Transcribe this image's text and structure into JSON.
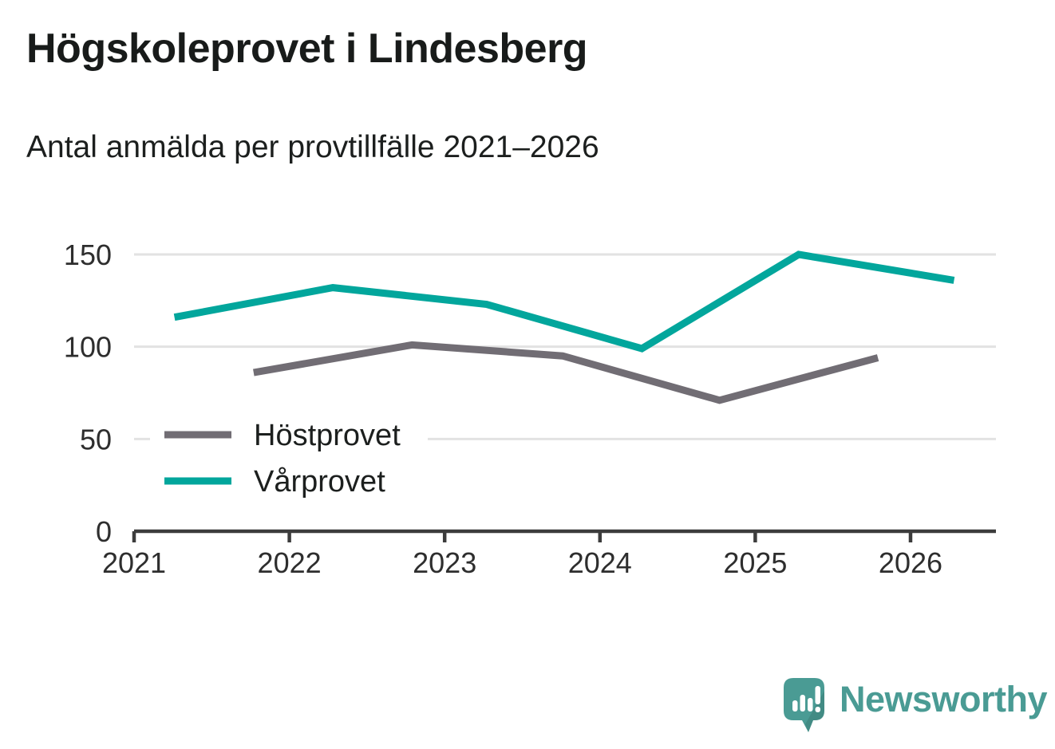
{
  "header": {
    "title": "Högskoleprovet i Lindesberg",
    "subtitle": "Antal anmälda per provtillfälle 2021–2026"
  },
  "chart_data": {
    "type": "line",
    "title": "Högskoleprovet i Lindesberg",
    "subtitle": "Antal anmälda per provtillfälle 2021–2026",
    "x_ticks": [
      2021,
      2022,
      2023,
      2024,
      2025,
      2026
    ],
    "x_range": [
      2021,
      2026.55
    ],
    "y_ticks": [
      0,
      50,
      100,
      150
    ],
    "y_range": [
      0,
      160
    ],
    "grid": "horizontal",
    "legend_position": "inside-left",
    "series": [
      {
        "name": "Höstprovet",
        "color": "#716d74",
        "x": [
          2021.77,
          2022.79,
          2023.76,
          2024.77,
          2025.79
        ],
        "values": [
          86,
          101,
          95,
          71,
          94
        ]
      },
      {
        "name": "Vårprovet",
        "color": "#02a69c",
        "x": [
          2021.26,
          2022.28,
          2023.27,
          2024.27,
          2025.28,
          2026.28
        ],
        "values": [
          116,
          132,
          123,
          99,
          150,
          136
        ]
      }
    ]
  },
  "footer": {
    "brand": "Newsworthy"
  },
  "colors": {
    "hostprovet_line": "#716d74",
    "varprovet_line": "#02a69c",
    "axis": "#3c3c3c",
    "gridline": "#e2e2e2",
    "tick_label": "#2e2e2e",
    "heading_text": "#181b1a",
    "logo_teal": "#4a9b94"
  }
}
